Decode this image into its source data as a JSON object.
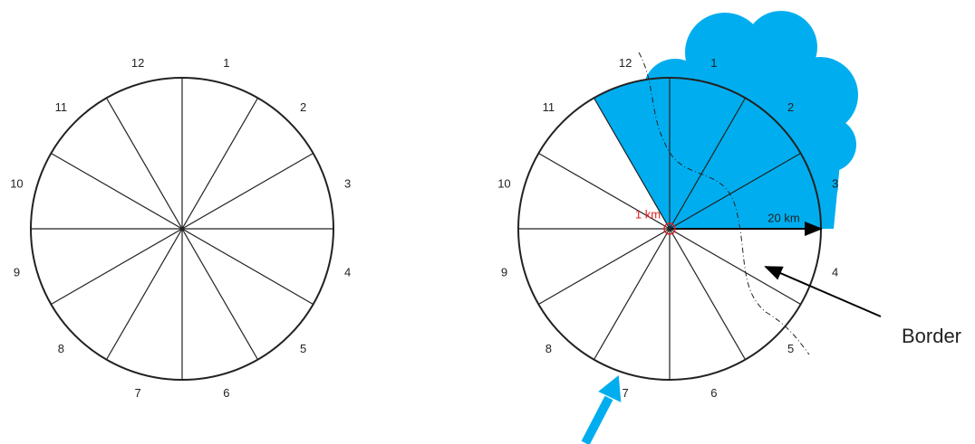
{
  "left_diagram": {
    "sector_labels": [
      "1",
      "2",
      "3",
      "4",
      "5",
      "6",
      "7",
      "8",
      "9",
      "10",
      "11",
      "12"
    ]
  },
  "right_diagram": {
    "sector_labels": [
      "1",
      "2",
      "3",
      "4",
      "5",
      "6",
      "7",
      "8",
      "9",
      "10",
      "11",
      "12"
    ],
    "inner_radius_label": "1 km",
    "outer_radius_label": "20 km",
    "border_label": "Border"
  }
}
